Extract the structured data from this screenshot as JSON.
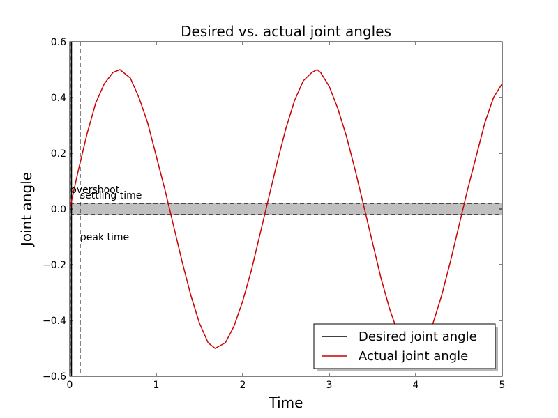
{
  "chart_data": {
    "type": "line",
    "title": "Desired vs. actual joint angles",
    "xlabel": "Time",
    "ylabel": "Joint angle",
    "xlim": [
      0,
      5
    ],
    "ylim": [
      -0.6,
      0.6
    ],
    "xticks": [
      "0",
      "1",
      "2",
      "3",
      "4",
      "5"
    ],
    "yticks": [
      "−0.6",
      "−0.4",
      "−0.2",
      "0.0",
      "0.2",
      "0.4",
      "0.6"
    ],
    "grid": false,
    "legend_position": "bottom-right",
    "series": [
      {
        "name": "Desired joint angle",
        "color": "#000000",
        "style": "solid",
        "x": [
          0,
          0,
          0.02,
          0.02
        ],
        "y": [
          -0.6,
          0.6,
          0.6,
          -0.6
        ]
      },
      {
        "name": "Actual joint angle",
        "color": "#cc0000",
        "style": "solid",
        "x": [
          0,
          0.1,
          0.2,
          0.3,
          0.4,
          0.5,
          0.58,
          0.7,
          0.8,
          0.9,
          1.0,
          1.1,
          1.2,
          1.3,
          1.4,
          1.5,
          1.6,
          1.68,
          1.8,
          1.9,
          2.0,
          2.1,
          2.2,
          2.3,
          2.4,
          2.5,
          2.6,
          2.7,
          2.8,
          2.86,
          2.9,
          3.0,
          3.1,
          3.2,
          3.3,
          3.4,
          3.5,
          3.6,
          3.7,
          3.8,
          3.9,
          4.0,
          4.1,
          4.2,
          4.3,
          4.4,
          4.5,
          4.6,
          4.7,
          4.8,
          4.9,
          5.0
        ],
        "y": [
          0.0,
          0.14,
          0.27,
          0.38,
          0.45,
          0.49,
          0.5,
          0.47,
          0.4,
          0.31,
          0.19,
          0.07,
          -0.06,
          -0.19,
          -0.31,
          -0.41,
          -0.48,
          -0.5,
          -0.48,
          -0.42,
          -0.33,
          -0.22,
          -0.09,
          0.04,
          0.17,
          0.29,
          0.39,
          0.46,
          0.49,
          0.5,
          0.49,
          0.44,
          0.36,
          0.26,
          0.14,
          0.01,
          -0.12,
          -0.25,
          -0.36,
          -0.45,
          -0.49,
          -0.5,
          -0.47,
          -0.41,
          -0.31,
          -0.19,
          -0.06,
          0.07,
          0.19,
          0.31,
          0.4,
          0.45
        ]
      }
    ],
    "band": {
      "y_low": -0.02,
      "y_high": 0.02,
      "color": "#c0c0c0"
    },
    "vlines": [
      0.005,
      0.02,
      0.12
    ],
    "annotations": [
      {
        "text": "overshoot",
        "x": 0.01,
        "y": 0.07
      },
      {
        "text": "settling time",
        "x": 0.12,
        "y": 0.05
      },
      {
        "text": "peak time",
        "x": 0.12,
        "y": -0.1
      }
    ]
  }
}
